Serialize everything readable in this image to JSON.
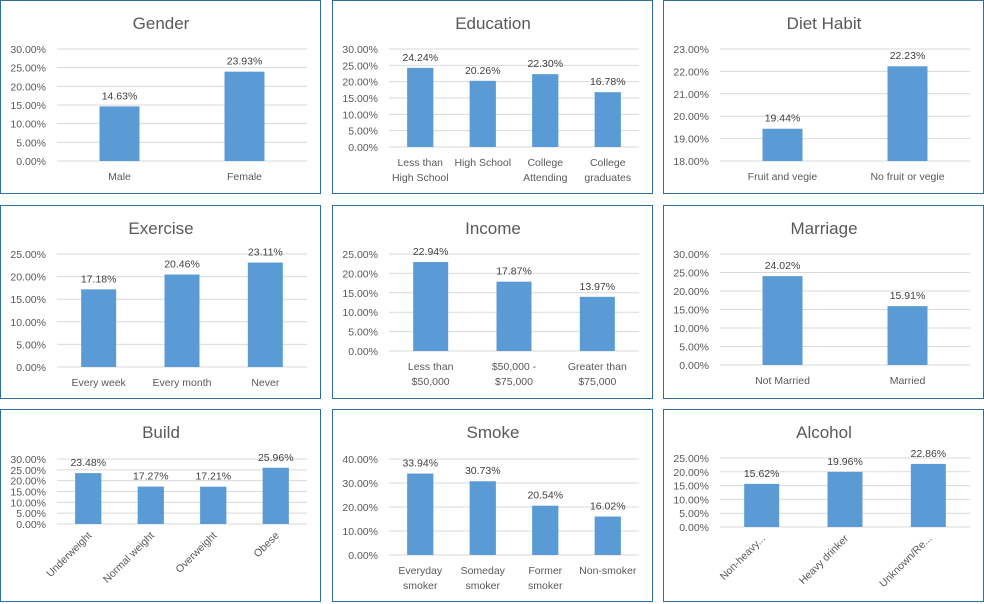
{
  "chart_data": [
    {
      "type": "bar",
      "title": "Gender",
      "categories": [
        "Male",
        "Female"
      ],
      "values": [
        14.63,
        23.93
      ],
      "data_labels": [
        "14.63%",
        "23.93%"
      ],
      "ylim": [
        0,
        30
      ],
      "yticks": [
        "0.00%",
        "5.00%",
        "10.00%",
        "15.00%",
        "20.00%",
        "25.00%",
        "30.00%"
      ],
      "grid": true,
      "legend": "none"
    },
    {
      "type": "bar",
      "title": "Education",
      "categories": [
        "Less than High School",
        "High School",
        "College Attending",
        "College graduates"
      ],
      "values": [
        24.24,
        20.26,
        22.3,
        16.78
      ],
      "data_labels": [
        "24.24%",
        "20.26%",
        "22.30%",
        "16.78%"
      ],
      "ylim": [
        0,
        30
      ],
      "yticks": [
        "0.00%",
        "5.00%",
        "10.00%",
        "15.00%",
        "20.00%",
        "25.00%",
        "30.00%"
      ],
      "grid": true,
      "legend": "none"
    },
    {
      "type": "bar",
      "title": "Diet Habit",
      "categories": [
        "Fruit and vegie",
        "No fruit or vegie"
      ],
      "values": [
        19.44,
        22.23
      ],
      "data_labels": [
        "19.44%",
        "22.23%"
      ],
      "ylim": [
        18,
        23
      ],
      "yticks": [
        "18.00%",
        "19.00%",
        "20.00%",
        "21.00%",
        "22.00%",
        "23.00%"
      ],
      "grid": true,
      "legend": "none"
    },
    {
      "type": "bar",
      "title": "Exercise",
      "categories": [
        "Every week",
        "Every month",
        "Never"
      ],
      "values": [
        17.18,
        20.46,
        23.11
      ],
      "data_labels": [
        "17.18%",
        "20.46%",
        "23.11%"
      ],
      "ylim": [
        0,
        25
      ],
      "yticks": [
        "0.00%",
        "5.00%",
        "10.00%",
        "15.00%",
        "20.00%",
        "25.00%"
      ],
      "grid": true,
      "legend": "none"
    },
    {
      "type": "bar",
      "title": "Income",
      "categories": [
        "Less than $50,000",
        "$50,000 - $75,000",
        "Greater than $75,000"
      ],
      "values": [
        22.94,
        17.87,
        13.97
      ],
      "data_labels": [
        "22.94%",
        "17.87%",
        "13.97%"
      ],
      "ylim": [
        0,
        25
      ],
      "yticks": [
        "0.00%",
        "5.00%",
        "10.00%",
        "15.00%",
        "20.00%",
        "25.00%"
      ],
      "grid": true,
      "legend": "none"
    },
    {
      "type": "bar",
      "title": "Marriage",
      "categories": [
        "Not Married",
        "Married"
      ],
      "values": [
        24.02,
        15.91
      ],
      "data_labels": [
        "24.02%",
        "15.91%"
      ],
      "ylim": [
        0,
        30
      ],
      "yticks": [
        "0.00%",
        "5.00%",
        "10.00%",
        "15.00%",
        "20.00%",
        "25.00%",
        "30.00%"
      ],
      "grid": true,
      "legend": "none"
    },
    {
      "type": "bar",
      "title": "Build",
      "categories": [
        "Underweight",
        "Normal weight",
        "Overweight",
        "Obese"
      ],
      "values": [
        23.48,
        17.27,
        17.21,
        25.96
      ],
      "data_labels": [
        "23.48%",
        "17.27%",
        "17.21%",
        "25.96%"
      ],
      "ylim": [
        0,
        30
      ],
      "yticks": [
        "0.00%",
        "5.00%",
        "10.00%",
        "15.00%",
        "20.00%",
        "25.00%",
        "30.00%"
      ],
      "grid": true,
      "legend": "none",
      "rotated_labels": true
    },
    {
      "type": "bar",
      "title": "Smoke",
      "categories": [
        "Everyday smoker",
        "Someday smoker",
        "Former smoker",
        "Non-smoker"
      ],
      "values": [
        33.94,
        30.73,
        20.54,
        16.02
      ],
      "data_labels": [
        "33.94%",
        "30.73%",
        "20.54%",
        "16.02%"
      ],
      "ylim": [
        0,
        40
      ],
      "yticks": [
        "0.00%",
        "10.00%",
        "20.00%",
        "30.00%",
        "40.00%"
      ],
      "grid": true,
      "legend": "none"
    },
    {
      "type": "bar",
      "title": "Alcohol",
      "categories": [
        "Non-heavy...",
        "Heavy drinker",
        "Unknown/Re..."
      ],
      "values": [
        15.62,
        19.96,
        22.86
      ],
      "data_labels": [
        "15.62%",
        "19.96%",
        "22.86%"
      ],
      "ylim": [
        0,
        25
      ],
      "yticks": [
        "0.00%",
        "5.00%",
        "10.00%",
        "15.00%",
        "20.00%",
        "25.00%"
      ],
      "grid": true,
      "legend": "none",
      "rotated_labels": true
    }
  ],
  "colors": {
    "bar": "#5b9bd5",
    "border": "#2e6f9e",
    "grid": "#d9d9d9",
    "text": "#595959"
  }
}
